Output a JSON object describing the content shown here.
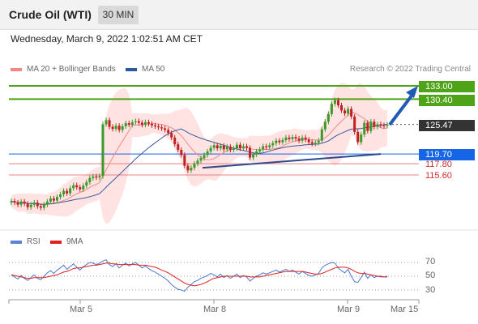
{
  "header": {
    "title": "Crude Oil (WTI)",
    "timeframe": "30 MIN"
  },
  "datetime": "Wednesday, March 9, 2022 1:02:51 AM CET",
  "legend": {
    "ma20": "MA 20 + Bollinger Bands",
    "ma50": "MA 50",
    "credit": "Research © 2022 Trading Central"
  },
  "rsi_legend": {
    "rsi": "RSI",
    "ma": "9MA"
  },
  "colors": {
    "green_level": "#4fa319",
    "blue_level": "#1565e6",
    "red_level": "#e88080",
    "up": "#3a9a2a",
    "down": "#c02020",
    "bollinger": "#ffd6d6",
    "ma50": "#3a5aa0",
    "rsi": "#4a78d0",
    "rsi_ma": "#e02020"
  },
  "chart_data": [
    {
      "type": "candlestick",
      "title": "Crude Oil (WTI)",
      "timeframe": "30 MIN",
      "price_range": [
        106,
        140
      ],
      "x_labels": [
        "Mar 5",
        "Mar 8",
        "Mar 9",
        "Mar 15"
      ],
      "current_price": "125.47",
      "levels": [
        {
          "value": 133.0,
          "label": "133.00",
          "kind": "resistance"
        },
        {
          "value": 130.4,
          "label": "130.40",
          "kind": "resistance"
        },
        {
          "value": 125.47,
          "label": "125.47",
          "kind": "last"
        },
        {
          "value": 119.7,
          "label": "119.70",
          "kind": "pivot"
        },
        {
          "value": 117.8,
          "label": "117.80",
          "kind": "support"
        },
        {
          "value": 115.6,
          "label": "115.60",
          "kind": "support"
        }
      ],
      "close_series": [
        110.5,
        110.2,
        109.8,
        110.4,
        110.0,
        109.3,
        109.8,
        110.2,
        109.5,
        109.2,
        109.8,
        110.4,
        111.0,
        110.6,
        111.3,
        111.8,
        112.5,
        112.0,
        113.0,
        113.6,
        113.2,
        112.8,
        113.5,
        114.2,
        115.0,
        115.3,
        115.1,
        115.4,
        125.5,
        126.3,
        125.0,
        124.6,
        125.2,
        124.4,
        125.1,
        125.7,
        125.4,
        125.9,
        126.1,
        125.8,
        125.4,
        125.9,
        125.6,
        125.3,
        125.1,
        124.9,
        124.7,
        124.4,
        123.8,
        122.9,
        121.6,
        120.5,
        119.5,
        117.4,
        116.5,
        117.0,
        117.8,
        118.4,
        118.9,
        119.5,
        120.2,
        120.9,
        121.4,
        120.8,
        121.3,
        120.6,
        121.1,
        120.5,
        120.8,
        121.5,
        120.8,
        121.2,
        120.9,
        119.0,
        119.6,
        120.2,
        120.6,
        121.2,
        121.0,
        121.4,
        121.8,
        122.3,
        122.0,
        122.4,
        122.9,
        122.6,
        123.0,
        122.7,
        122.3,
        122.9,
        122.5,
        122.0,
        121.7,
        121.9,
        122.3,
        124.5,
        126.0,
        127.5,
        129.5,
        130.2,
        129.2,
        128.2,
        127.6,
        128.5,
        127.0,
        124.0,
        122.0,
        123.5,
        125.8,
        124.2,
        126.0,
        125.0,
        125.5,
        125.3,
        125.2,
        125.47
      ]
    },
    {
      "type": "line",
      "title": "RSI",
      "series": [
        {
          "name": "RSI"
        },
        {
          "name": "9MA"
        }
      ],
      "ticks": [
        70,
        50,
        30
      ],
      "ylim": [
        20,
        80
      ],
      "rsi": [
        52,
        49,
        46,
        51,
        47,
        44,
        48,
        52,
        47,
        45,
        50,
        55,
        58,
        54,
        59,
        62,
        66,
        60,
        64,
        68,
        63,
        59,
        64,
        67,
        70,
        69,
        67,
        69,
        72,
        74,
        67,
        64,
        68,
        62,
        66,
        69,
        65,
        68,
        70,
        66,
        62,
        65,
        61,
        58,
        56,
        53,
        50,
        47,
        43,
        38,
        34,
        31,
        30,
        28,
        34,
        38,
        42,
        44,
        47,
        49,
        51,
        54,
        52,
        49,
        53,
        48,
        51,
        47,
        50,
        53,
        48,
        51,
        49,
        43,
        47,
        50,
        52,
        55,
        53,
        55,
        57,
        59,
        56,
        58,
        60,
        57,
        59,
        56,
        53,
        57,
        54,
        51,
        50,
        52,
        54,
        62,
        66,
        68,
        70,
        69,
        62,
        58,
        55,
        60,
        50,
        42,
        41,
        48,
        56,
        47,
        52,
        48,
        50,
        49,
        49,
        50
      ],
      "ma9": [
        52,
        51,
        50,
        49,
        48,
        47,
        47,
        48,
        48,
        48,
        48,
        49,
        50,
        51,
        52,
        54,
        56,
        57,
        59,
        61,
        62,
        62,
        63,
        64,
        65,
        66,
        66,
        67,
        68,
        69,
        69,
        68,
        68,
        67,
        67,
        67,
        67,
        67,
        67,
        66,
        66,
        66,
        65,
        64,
        63,
        61,
        59,
        57,
        55,
        52,
        49,
        46,
        43,
        40,
        38,
        37,
        36,
        37,
        38,
        40,
        42,
        45,
        47,
        48,
        49,
        50,
        50,
        50,
        50,
        50,
        50,
        50,
        50,
        49,
        49,
        49,
        49,
        50,
        51,
        52,
        53,
        54,
        55,
        56,
        57,
        57,
        57,
        57,
        57,
        57,
        56,
        55,
        54,
        53,
        53,
        54,
        56,
        58,
        60,
        62,
        63,
        63,
        63,
        62,
        60,
        57,
        55,
        54,
        54,
        53,
        52,
        51,
        50,
        50,
        49,
        49
      ]
    }
  ]
}
